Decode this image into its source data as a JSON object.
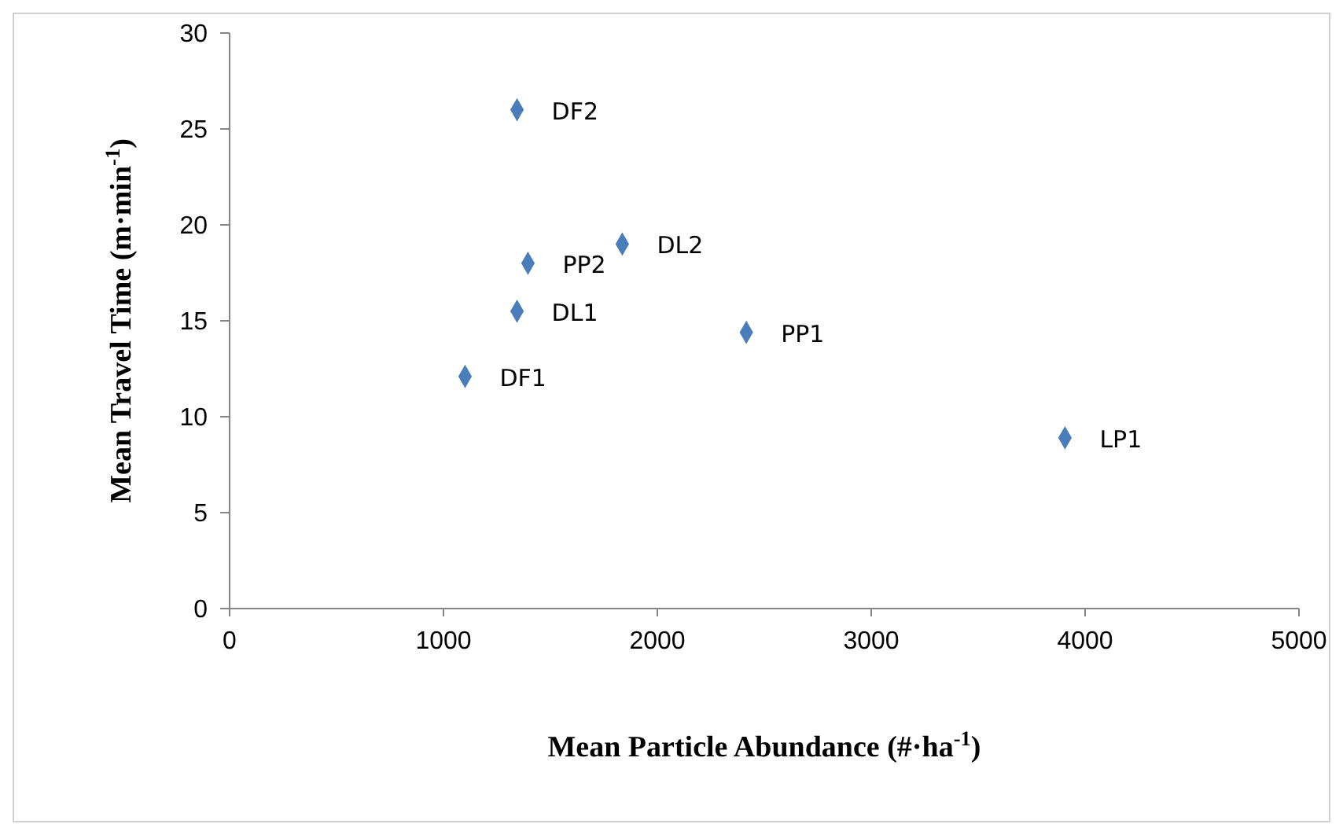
{
  "chart_data": {
    "type": "scatter",
    "xlabel": "Mean Particle Abundance (#·ha$^{-1}$)",
    "ylabel": "Mean Travel Time (m·min$^{-1}$)",
    "x": [
      1344,
      1395,
      1836,
      1344,
      2416,
      1101,
      3906
    ],
    "series": [
      {
        "color": "#4a7ebb",
        "values": [
          26,
          18,
          19,
          15.5,
          14.4,
          12.1,
          8.9
        ]
      }
    ],
    "annotations": [
      {
        "text": "DF2",
        "x": 1344,
        "y": 26
      },
      {
        "text": "PP2",
        "x": 1395,
        "y": 18
      },
      {
        "text": "DL2",
        "x": 1836,
        "y": 19
      },
      {
        "text": "DL1",
        "x": 1344,
        "y": 15.5
      },
      {
        "text": "PP1",
        "x": 2416,
        "y": 14.4
      },
      {
        "text": "DF1",
        "x": 1101,
        "y": 12.1
      },
      {
        "text": "LP1",
        "x": 3906,
        "y": 8.9
      }
    ],
    "xlim": [
      0,
      5000
    ],
    "xticks": [
      0,
      1000,
      2000,
      3000,
      4000,
      5000
    ],
    "ylim": [
      0,
      30
    ],
    "yticks": [
      0,
      5,
      10,
      15,
      20,
      25,
      30
    ],
    "grid": false,
    "legend": false,
    "marker": "diamond"
  }
}
